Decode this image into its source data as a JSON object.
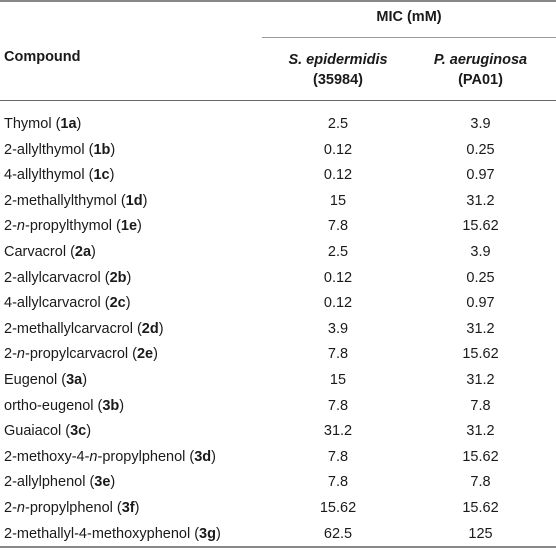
{
  "header": {
    "group_label": "MIC (mM)",
    "compound_label": "Compound",
    "col1": {
      "organism": "S. epidermidis",
      "strain": "(35984)"
    },
    "col2": {
      "organism": "P. aeruginosa",
      "strain": "(PA01)"
    }
  },
  "rows": [
    {
      "prefix": "Thymol (",
      "italic": "",
      "rest": "",
      "code": "1a",
      "suffix": ")",
      "v1": "2.5",
      "v2": "3.9"
    },
    {
      "prefix": "2-allylthymol (",
      "italic": "",
      "rest": "",
      "code": "1b",
      "suffix": ")",
      "v1": "0.12",
      "v2": "0.25"
    },
    {
      "prefix": "4-allylthymol (",
      "italic": "",
      "rest": "",
      "code": "1c",
      "suffix": ")",
      "v1": "0.12",
      "v2": "0.97"
    },
    {
      "prefix": "2-methallylthymol (",
      "italic": "",
      "rest": "",
      "code": "1d",
      "suffix": ")",
      "v1": "15",
      "v2": "31.2"
    },
    {
      "prefix": "2-",
      "italic": "n",
      "rest": "-propylthymol (",
      "code": "1e",
      "suffix": ")",
      "v1": "7.8",
      "v2": "15.62"
    },
    {
      "prefix": "Carvacrol (",
      "italic": "",
      "rest": "",
      "code": "2a",
      "suffix": ")",
      "v1": "2.5",
      "v2": "3.9"
    },
    {
      "prefix": "2-allylcarvacrol (",
      "italic": "",
      "rest": "",
      "code": "2b",
      "suffix": ")",
      "v1": "0.12",
      "v2": "0.25"
    },
    {
      "prefix": "4-allylcarvacrol (",
      "italic": "",
      "rest": "",
      "code": "2c",
      "suffix": ")",
      "v1": "0.12",
      "v2": "0.97"
    },
    {
      "prefix": "2-methallylcarvacrol (",
      "italic": "",
      "rest": "",
      "code": "2d",
      "suffix": ")",
      "v1": "3.9",
      "v2": "31.2"
    },
    {
      "prefix": "2-",
      "italic": "n",
      "rest": "-propylcarvacrol (",
      "code": "2e",
      "suffix": ")",
      "v1": "7.8",
      "v2": "15.62"
    },
    {
      "prefix": "Eugenol (",
      "italic": "",
      "rest": "",
      "code": "3a",
      "suffix": ")",
      "v1": "15",
      "v2": "31.2"
    },
    {
      "prefix": "ortho-eugenol (",
      "italic": "",
      "rest": "",
      "code": "3b",
      "suffix": ")",
      "v1": "7.8",
      "v2": "7.8"
    },
    {
      "prefix": "Guaiacol (",
      "italic": "",
      "rest": "",
      "code": "3c",
      "suffix": ")",
      "v1": "31.2",
      "v2": "31.2"
    },
    {
      "prefix": "2-methoxy-4-",
      "italic": "n",
      "rest": "-propylphenol (",
      "code": "3d",
      "suffix": ")",
      "v1": "7.8",
      "v2": "15.62"
    },
    {
      "prefix": "2-allylphenol (",
      "italic": "",
      "rest": "",
      "code": "3e",
      "suffix": ")",
      "v1": "7.8",
      "v2": "7.8"
    },
    {
      "prefix": "2-",
      "italic": "n",
      "rest": "-propylphenol (",
      "code": "3f",
      "suffix": ")",
      "v1": "15.62",
      "v2": "15.62"
    },
    {
      "prefix": "2-methallyl-4-methoxyphenol (",
      "italic": "",
      "rest": "",
      "code": "3g",
      "suffix": ")",
      "v1": "62.5",
      "v2": "125"
    }
  ]
}
